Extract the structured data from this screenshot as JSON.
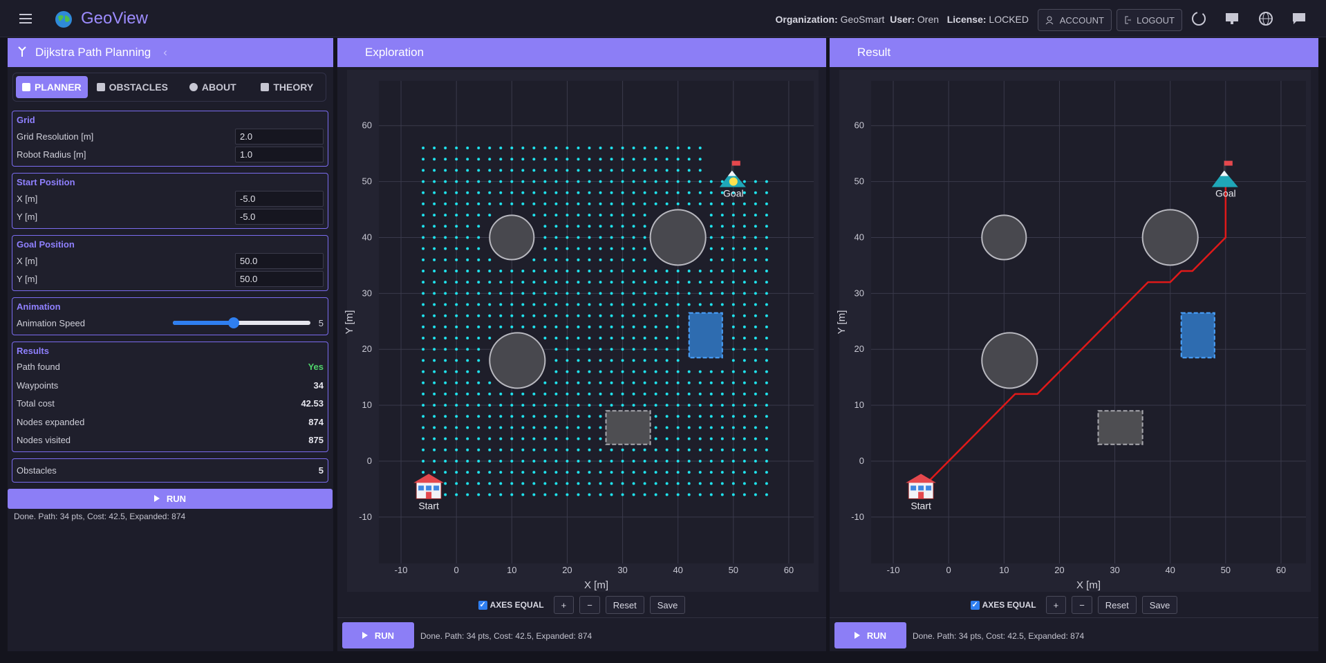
{
  "topbar": {
    "brand": "GeoView",
    "org_label": "Organization:",
    "org": "GeoSmart",
    "user_label": "User:",
    "user": "Oren",
    "license_label": "License:",
    "license": "LOCKED",
    "account": "ACCOUNT",
    "logout": "LOGOUT"
  },
  "sidebar": {
    "title": "Dijkstra Path Planning",
    "tabs": [
      "PLANNER",
      "OBSTACLES",
      "ABOUT",
      "THEORY"
    ],
    "sections": [
      {
        "title": "Grid",
        "fields": [
          {
            "label": "Grid Resolution [m]",
            "value": "2.0"
          },
          {
            "label": "Robot Radius [m]",
            "value": "1.0"
          }
        ]
      },
      {
        "title": "Start Position",
        "fields": [
          {
            "label": "X [m]",
            "value": "-5.0"
          },
          {
            "label": "Y [m]",
            "value": "-5.0"
          }
        ]
      },
      {
        "title": "Goal Position",
        "fields": [
          {
            "label": "X [m]",
            "value": "50.0"
          },
          {
            "label": "Y [m]",
            "value": "50.0"
          }
        ]
      }
    ],
    "animation": {
      "title": "Animation",
      "label": "Animation Speed",
      "value": 5,
      "range": [
        1,
        10
      ]
    },
    "results": {
      "title": "Results",
      "rows": [
        {
          "label": "Path found",
          "value": "Yes"
        },
        {
          "label": "Waypoints",
          "value": "34"
        },
        {
          "label": "Total cost",
          "value": "42.53"
        },
        {
          "label": "Nodes expanded",
          "value": "874"
        },
        {
          "label": "Nodes visited",
          "value": "875"
        }
      ]
    },
    "obstacles": {
      "label": "Obstacles",
      "value": "5"
    },
    "run": "RUN",
    "status": "Done. Path: 34 pts, Cost: 42.5, Expanded: 874"
  },
  "controls": {
    "axes_equal": "AXES EQUAL",
    "zoom_in": "+",
    "zoom_out": "−",
    "reset": "Reset",
    "save": "Save"
  },
  "chart_data": [
    {
      "type": "scatter",
      "title": "Exploration",
      "xlabel": "X [m]",
      "ylabel": "Y [m]",
      "xlim": [
        -14,
        64.5
      ],
      "ylim": [
        -18.3,
        68
      ],
      "xticks": [
        -10,
        0,
        10,
        20,
        30,
        40,
        50,
        60
      ],
      "yticks": [
        -10,
        0,
        10,
        20,
        30,
        40,
        50,
        60
      ],
      "grid": true,
      "start": {
        "x": -5,
        "y": -5,
        "label": "Start"
      },
      "goal": {
        "x": 50,
        "y": 50,
        "label": "Goal"
      },
      "obstacles": [
        {
          "shape": "circle",
          "x": 10,
          "y": 40,
          "r": 4,
          "color": "#48484e"
        },
        {
          "shape": "circle",
          "x": 40,
          "y": 40,
          "r": 5,
          "color": "#48484e"
        },
        {
          "shape": "circle",
          "x": 11,
          "y": 18,
          "r": 5,
          "color": "#48484e"
        },
        {
          "shape": "rect",
          "x0": 42,
          "y0": 18.5,
          "x1": 48,
          "y1": 26.5,
          "color": "#2e6cb0"
        },
        {
          "shape": "rect",
          "x0": 27,
          "y0": 3,
          "x1": 35,
          "y1": 9,
          "color": "#4e4e52"
        }
      ],
      "explored": {
        "x_range": [
          -6,
          56
        ],
        "y_range": [
          -6,
          56
        ],
        "step": 2,
        "color": "#1fe3ee",
        "unexplored_from": {
          "x": 46,
          "y": 52
        }
      },
      "current": {
        "x": 50,
        "y": 50,
        "color": "#ffe14d"
      }
    },
    {
      "type": "line",
      "title": "Result",
      "xlabel": "X [m]",
      "ylabel": "Y [m]",
      "xlim": [
        -14,
        64.5
      ],
      "ylim": [
        -18.3,
        68
      ],
      "xticks": [
        -10,
        0,
        10,
        20,
        30,
        40,
        50,
        60
      ],
      "yticks": [
        -10,
        0,
        10,
        20,
        30,
        40,
        50,
        60
      ],
      "grid": true,
      "start": {
        "x": -5,
        "y": -5,
        "label": "Start"
      },
      "goal": {
        "x": 50,
        "y": 50,
        "label": "Goal"
      },
      "obstacles": [
        {
          "shape": "circle",
          "x": 10,
          "y": 40,
          "r": 4,
          "color": "#48484e"
        },
        {
          "shape": "circle",
          "x": 40,
          "y": 40,
          "r": 5,
          "color": "#48484e"
        },
        {
          "shape": "circle",
          "x": 11,
          "y": 18,
          "r": 5,
          "color": "#48484e"
        },
        {
          "shape": "rect",
          "x0": 42,
          "y0": 18.5,
          "x1": 48,
          "y1": 26.5,
          "color": "#2e6cb0"
        },
        {
          "shape": "rect",
          "x0": 27,
          "y0": 3,
          "x1": 35,
          "y1": 9,
          "color": "#4e4e52"
        }
      ],
      "path": {
        "x": [
          -5,
          12,
          16,
          36,
          40,
          42,
          44,
          50,
          50
        ],
        "y": [
          -5,
          12,
          12,
          32,
          32,
          34,
          34,
          40,
          50
        ],
        "color": "#e01919"
      }
    }
  ]
}
